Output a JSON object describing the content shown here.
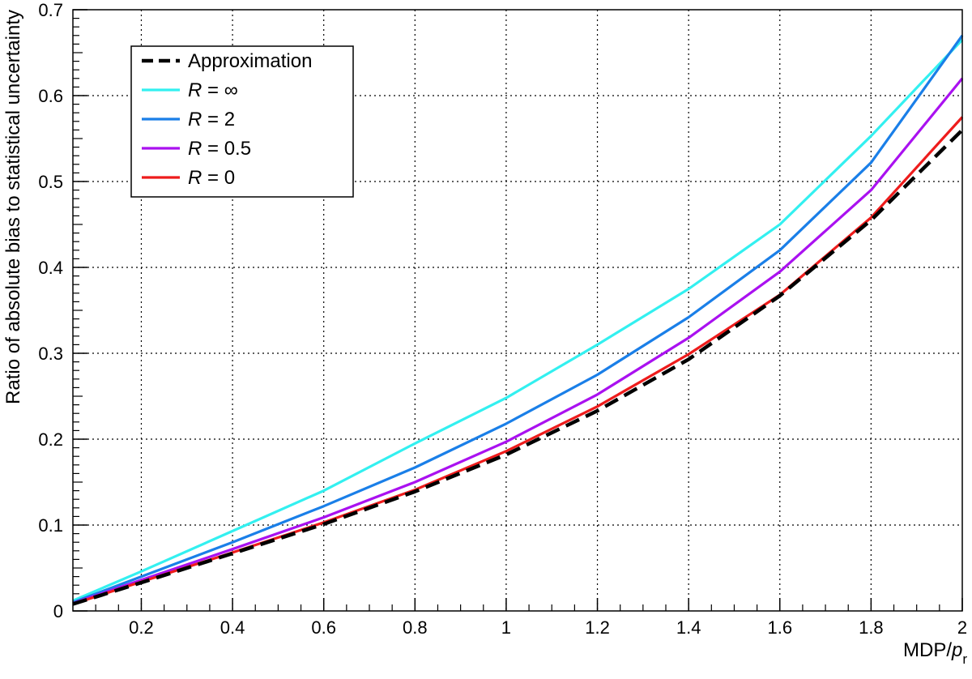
{
  "chart_data": {
    "type": "line",
    "xlabel": "MDP/",
    "xlabel_italic": "p",
    "xlabel_sub": "r",
    "ylabel": "Ratio of absolute bias to statistical uncertainty",
    "xlim": [
      0.05,
      2
    ],
    "ylim": [
      0,
      0.7
    ],
    "x_ticks": [
      "0.2",
      "0.4",
      "0.6",
      "0.8",
      "1",
      "1.2",
      "1.4",
      "1.6",
      "1.8",
      "2"
    ],
    "y_ticks": [
      "0",
      "0.1",
      "0.2",
      "0.3",
      "0.4",
      "0.5",
      "0.6",
      "0.7"
    ],
    "grid": true,
    "legend_position": "top-left",
    "series": [
      {
        "name": "Approximation",
        "label_var": "",
        "label_value": "Approximation",
        "color": "#000000",
        "dashed": true,
        "x": [
          0.05,
          0.2,
          0.4,
          0.6,
          0.8,
          1.0,
          1.2,
          1.4,
          1.6,
          1.8,
          2.0
        ],
        "y": [
          0.008,
          0.033,
          0.067,
          0.101,
          0.139,
          0.182,
          0.233,
          0.293,
          0.367,
          0.455,
          0.56
        ]
      },
      {
        "name": "R = ∞",
        "label_var": "R",
        "label_value": " = ∞",
        "color": "#33f0f0",
        "dashed": false,
        "x": [
          0.05,
          0.2,
          0.4,
          0.6,
          0.8,
          1.0,
          1.2,
          1.4,
          1.6,
          1.8,
          2.0
        ],
        "y": [
          0.012,
          0.046,
          0.093,
          0.14,
          0.195,
          0.248,
          0.31,
          0.375,
          0.45,
          0.553,
          0.665
        ]
      },
      {
        "name": "R = 2",
        "label_var": "R",
        "label_value": " = 2",
        "color": "#1a7fe8",
        "dashed": false,
        "x": [
          0.05,
          0.2,
          0.4,
          0.6,
          0.8,
          1.0,
          1.2,
          1.4,
          1.6,
          1.8,
          2.0
        ],
        "y": [
          0.01,
          0.04,
          0.08,
          0.122,
          0.167,
          0.218,
          0.275,
          0.342,
          0.42,
          0.522,
          0.67
        ]
      },
      {
        "name": "R = 0.5",
        "label_var": "R",
        "label_value": " = 0.5",
        "color": "#aa11f0",
        "dashed": false,
        "x": [
          0.05,
          0.2,
          0.4,
          0.6,
          0.8,
          1.0,
          1.2,
          1.4,
          1.6,
          1.8,
          2.0
        ],
        "y": [
          0.009,
          0.036,
          0.072,
          0.109,
          0.15,
          0.197,
          0.252,
          0.318,
          0.395,
          0.49,
          0.62
        ]
      },
      {
        "name": "R = 0",
        "label_var": "R",
        "label_value": " = 0",
        "color": "#ee1c1c",
        "dashed": false,
        "x": [
          0.05,
          0.2,
          0.4,
          0.6,
          0.8,
          1.0,
          1.2,
          1.4,
          1.6,
          1.8,
          2.0
        ],
        "y": [
          0.008,
          0.034,
          0.068,
          0.103,
          0.141,
          0.186,
          0.238,
          0.299,
          0.368,
          0.458,
          0.575
        ]
      }
    ]
  }
}
